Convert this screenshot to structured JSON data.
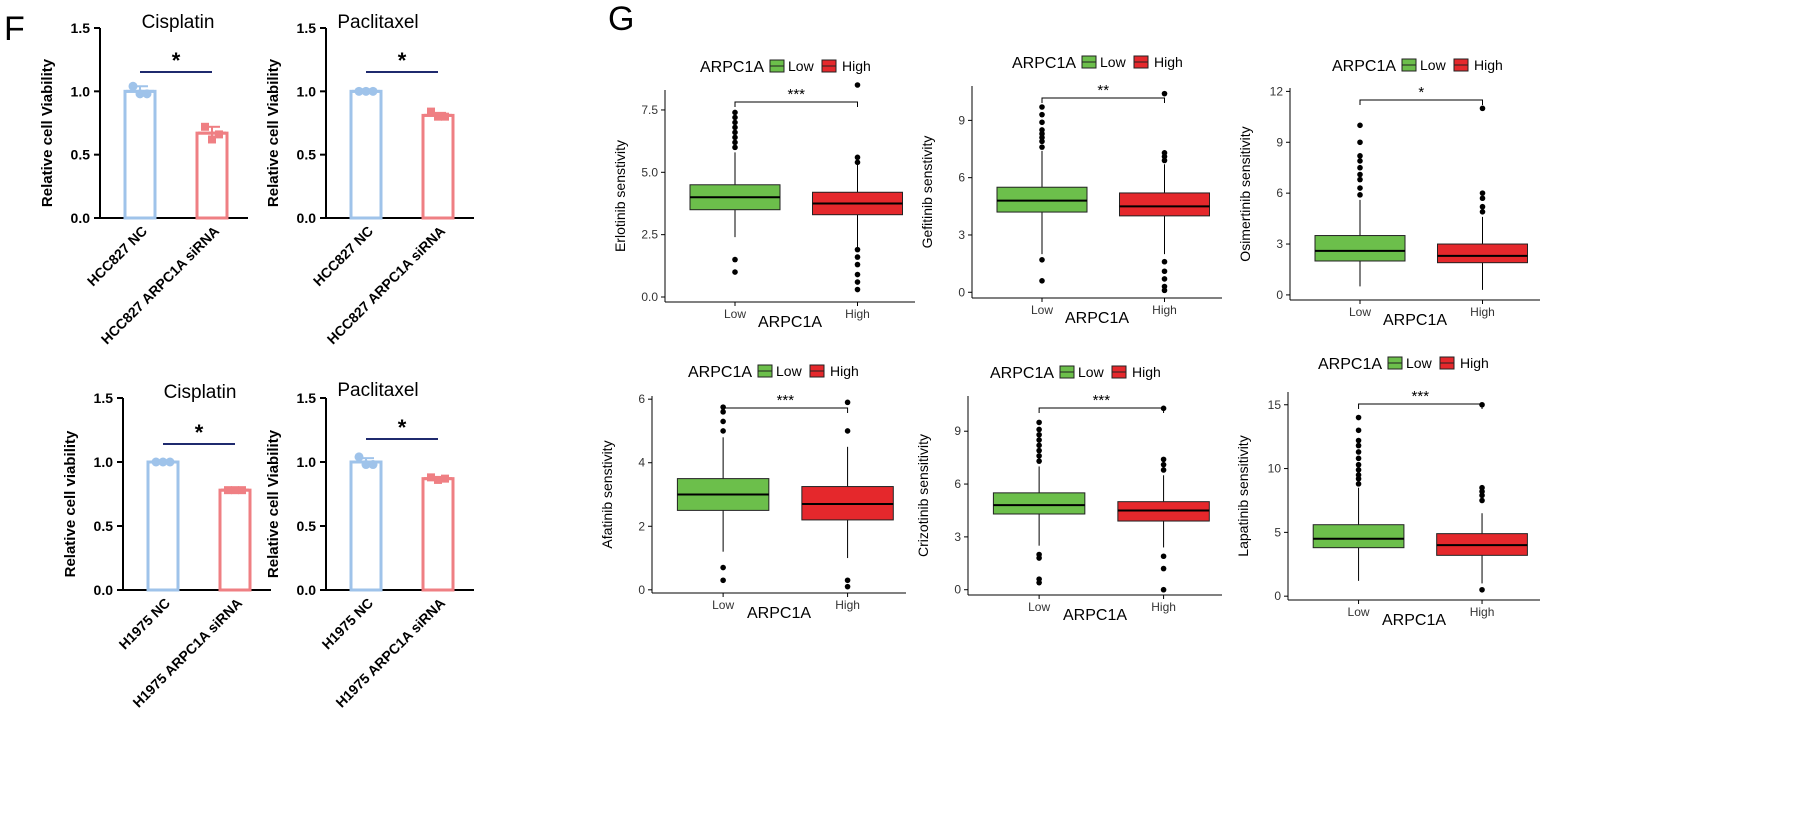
{
  "panel_labels": {
    "F": "F",
    "G": "G"
  },
  "colors": {
    "bar_nc": "#9fc3ea",
    "bar_si": "#ef7f83",
    "box_low": "#6cbf4b",
    "box_high": "#e5282c",
    "sig_line": "#1f2a6e"
  },
  "chart_data": [
    {
      "type": "bar",
      "title": "Cisplatin",
      "ylabel": "Relative cell Viability",
      "categories": [
        "HCC827 NC",
        "HCC827 ARPC1A siRNA"
      ],
      "values": [
        1.0,
        0.67
      ],
      "errors": [
        0.04,
        0.05
      ],
      "points": [
        [
          1.04,
          0.98,
          0.98
        ],
        [
          0.72,
          0.62,
          0.66
        ]
      ],
      "ylim": [
        0,
        1.5
      ],
      "yticks": [
        "0.0",
        "0.5",
        "1.0",
        "1.5"
      ],
      "significance": "*"
    },
    {
      "type": "bar",
      "title": "Paclitaxel",
      "ylabel": "Relative cell Viability",
      "categories": [
        "HCC827 NC",
        "HCC827 ARPC1A siRNA"
      ],
      "values": [
        1.0,
        0.81
      ],
      "errors": [
        0.005,
        0.02
      ],
      "points": [
        [
          1.0,
          1.0,
          1.0
        ],
        [
          0.84,
          0.8,
          0.8
        ]
      ],
      "ylim": [
        0,
        1.5
      ],
      "yticks": [
        "0.0",
        "0.5",
        "1.0",
        "1.5"
      ],
      "significance": "*"
    },
    {
      "type": "bar",
      "title": "Cisplatin",
      "ylabel": "Relative cell viability",
      "categories": [
        "H1975 NC",
        "H1975 ARPC1A siRNA"
      ],
      "values": [
        1.0,
        0.78
      ],
      "errors": [
        0.005,
        0.01
      ],
      "points": [
        [
          1.0,
          1.0,
          1.0
        ],
        [
          0.78,
          0.78,
          0.78
        ]
      ],
      "ylim": [
        0,
        1.5
      ],
      "yticks": [
        "0.0",
        "0.5",
        "1.0",
        "1.5"
      ],
      "significance": "*"
    },
    {
      "type": "bar",
      "title": "Paclitaxel",
      "ylabel": "Relative cell Viability",
      "categories": [
        "H1975 NC",
        "H1975 ARPC1A siRNA"
      ],
      "values": [
        1.0,
        0.87
      ],
      "errors": [
        0.03,
        0.01
      ],
      "points": [
        [
          1.04,
          0.98,
          0.98
        ],
        [
          0.88,
          0.86,
          0.87
        ]
      ],
      "ylim": [
        0,
        1.5
      ],
      "yticks": [
        "0.0",
        "0.5",
        "1.0",
        "1.5"
      ],
      "significance": "*"
    },
    {
      "type": "box",
      "legend_title": "ARPC1A",
      "legend_entries": [
        "Low",
        "High"
      ],
      "xlabel": "ARPC1A",
      "ylabel": "Erlotinib senstivity",
      "categories": [
        "Low",
        "High"
      ],
      "ylim": [
        -0.2,
        8.3
      ],
      "yticks": [
        0,
        2.5,
        5,
        7.5
      ],
      "ytick_labels": [
        "0.0",
        "2.5",
        "5.0",
        "7.5"
      ],
      "significance": "***",
      "boxes": [
        {
          "whisker_low": 2.4,
          "q1": 3.5,
          "median": 4.0,
          "q3": 4.5,
          "whisker_high": 5.8,
          "outliers": [
            1.0,
            1.5,
            6.0,
            6.2,
            6.4,
            6.6,
            6.8,
            7.0,
            7.2,
            7.4
          ]
        },
        {
          "whisker_low": 2.0,
          "q1": 3.3,
          "median": 3.75,
          "q3": 4.2,
          "whisker_high": 5.3,
          "outliers": [
            0.3,
            0.6,
            0.9,
            1.3,
            1.6,
            1.9,
            5.4,
            5.6,
            8.5
          ]
        }
      ]
    },
    {
      "type": "box",
      "legend_title": "ARPC1A",
      "legend_entries": [
        "Low",
        "High"
      ],
      "xlabel": "ARPC1A",
      "ylabel": "Gefitinib senstivity",
      "categories": [
        "Low",
        "High"
      ],
      "ylim": [
        -0.3,
        10.8
      ],
      "yticks": [
        0,
        3,
        6,
        9
      ],
      "ytick_labels": [
        "0",
        "3",
        "6",
        "9"
      ],
      "significance": "**",
      "boxes": [
        {
          "whisker_low": 2.0,
          "q1": 4.2,
          "median": 4.8,
          "q3": 5.5,
          "whisker_high": 7.4,
          "outliers": [
            0.6,
            1.7,
            7.6,
            7.9,
            8.1,
            8.3,
            8.5,
            8.9,
            9.3,
            9.7
          ]
        },
        {
          "whisker_low": 2.0,
          "q1": 4.0,
          "median": 4.5,
          "q3": 5.2,
          "whisker_high": 6.7,
          "outliers": [
            0.1,
            0.3,
            0.7,
            1.1,
            1.6,
            6.9,
            7.1,
            7.3,
            10.4
          ]
        }
      ]
    },
    {
      "type": "box",
      "legend_title": "ARPC1A",
      "legend_entries": [
        "Low",
        "High"
      ],
      "xlabel": "ARPC1A",
      "ylabel": "Osimertinib sensitivity",
      "categories": [
        "Low",
        "High"
      ],
      "ylim": [
        -0.3,
        12.2
      ],
      "yticks": [
        0,
        3,
        6,
        9,
        12
      ],
      "ytick_labels": [
        "0",
        "3",
        "6",
        "9",
        "12"
      ],
      "significance": "*",
      "boxes": [
        {
          "whisker_low": 0.5,
          "q1": 2.0,
          "median": 2.6,
          "q3": 3.5,
          "whisker_high": 5.6,
          "outliers": [
            5.9,
            6.3,
            6.8,
            7.1,
            7.5,
            7.9,
            8.2,
            9.0,
            10.0
          ]
        },
        {
          "whisker_low": 0.3,
          "q1": 1.9,
          "median": 2.3,
          "q3": 3.0,
          "whisker_high": 4.6,
          "outliers": [
            4.9,
            5.2,
            5.7,
            6.0,
            11.0
          ]
        }
      ]
    },
    {
      "type": "box",
      "legend_title": "ARPC1A",
      "legend_entries": [
        "Low",
        "High"
      ],
      "xlabel": "ARPC1A",
      "ylabel": "Afatinib senstivity",
      "categories": [
        "Low",
        "High"
      ],
      "ylim": [
        -0.1,
        6.1
      ],
      "yticks": [
        0,
        2,
        4,
        6
      ],
      "ytick_labels": [
        "0",
        "2",
        "4",
        "6"
      ],
      "significance": "***",
      "boxes": [
        {
          "whisker_low": 1.2,
          "q1": 2.5,
          "median": 3.0,
          "q3": 3.5,
          "whisker_high": 4.8,
          "outliers": [
            0.3,
            0.7,
            5.0,
            5.3,
            5.6,
            5.75
          ]
        },
        {
          "whisker_low": 1.0,
          "q1": 2.2,
          "median": 2.7,
          "q3": 3.25,
          "whisker_high": 4.5,
          "outliers": [
            0.1,
            0.3,
            5.0,
            5.9
          ]
        }
      ]
    },
    {
      "type": "box",
      "legend_title": "ARPC1A",
      "legend_entries": [
        "Low",
        "High"
      ],
      "xlabel": "ARPC1A",
      "ylabel": "Crizotinib sensitivity",
      "categories": [
        "Low",
        "High"
      ],
      "ylim": [
        -0.3,
        11.0
      ],
      "yticks": [
        0,
        3,
        6,
        9
      ],
      "ytick_labels": [
        "0",
        "3",
        "6",
        "9"
      ],
      "significance": "***",
      "boxes": [
        {
          "whisker_low": 2.5,
          "q1": 4.3,
          "median": 4.8,
          "q3": 5.5,
          "whisker_high": 7.0,
          "outliers": [
            0.4,
            0.6,
            1.8,
            2.0,
            7.3,
            7.6,
            7.9,
            8.2,
            8.5,
            8.8,
            9.1,
            9.5
          ]
        },
        {
          "whisker_low": 2.4,
          "q1": 3.9,
          "median": 4.5,
          "q3": 5.0,
          "whisker_high": 6.5,
          "outliers": [
            0.0,
            1.2,
            1.9,
            6.8,
            7.1,
            7.4,
            10.3
          ]
        }
      ]
    },
    {
      "type": "box",
      "legend_title": "ARPC1A",
      "legend_entries": [
        "Low",
        "High"
      ],
      "xlabel": "ARPC1A",
      "ylabel": "Lapatinib sensitivity",
      "categories": [
        "Low",
        "High"
      ],
      "ylim": [
        -0.3,
        16.0
      ],
      "yticks": [
        0,
        5,
        10,
        15
      ],
      "ytick_labels": [
        "0",
        "5",
        "10",
        "15"
      ],
      "significance": "***",
      "boxes": [
        {
          "whisker_low": 1.2,
          "q1": 3.8,
          "median": 4.5,
          "q3": 5.6,
          "whisker_high": 8.5,
          "outliers": [
            8.8,
            9.2,
            9.5,
            9.9,
            10.3,
            10.8,
            11.3,
            11.8,
            12.2,
            13.0,
            14.0
          ]
        },
        {
          "whisker_low": 1.0,
          "q1": 3.2,
          "median": 4.0,
          "q3": 4.9,
          "whisker_high": 6.5,
          "outliers": [
            0.5,
            7.5,
            7.9,
            8.2,
            8.5,
            15.0
          ]
        }
      ]
    }
  ]
}
